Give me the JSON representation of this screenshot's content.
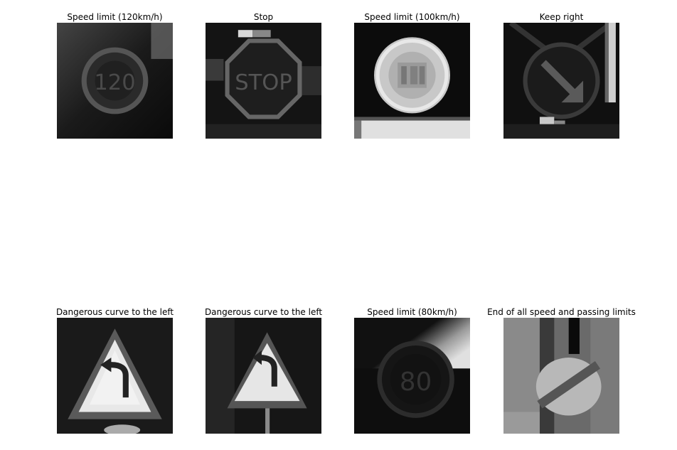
{
  "panels": [
    {
      "title": "Speed limit (120km/h)"
    },
    {
      "title": "Stop"
    },
    {
      "title": "Speed limit (100km/h)"
    },
    {
      "title": "Keep right"
    },
    {
      "title": "Dangerous curve to the left"
    },
    {
      "title": "Dangerous curve to the left"
    },
    {
      "title": "Speed limit (80km/h)"
    },
    {
      "title": "End of all speed and passing limits"
    }
  ]
}
